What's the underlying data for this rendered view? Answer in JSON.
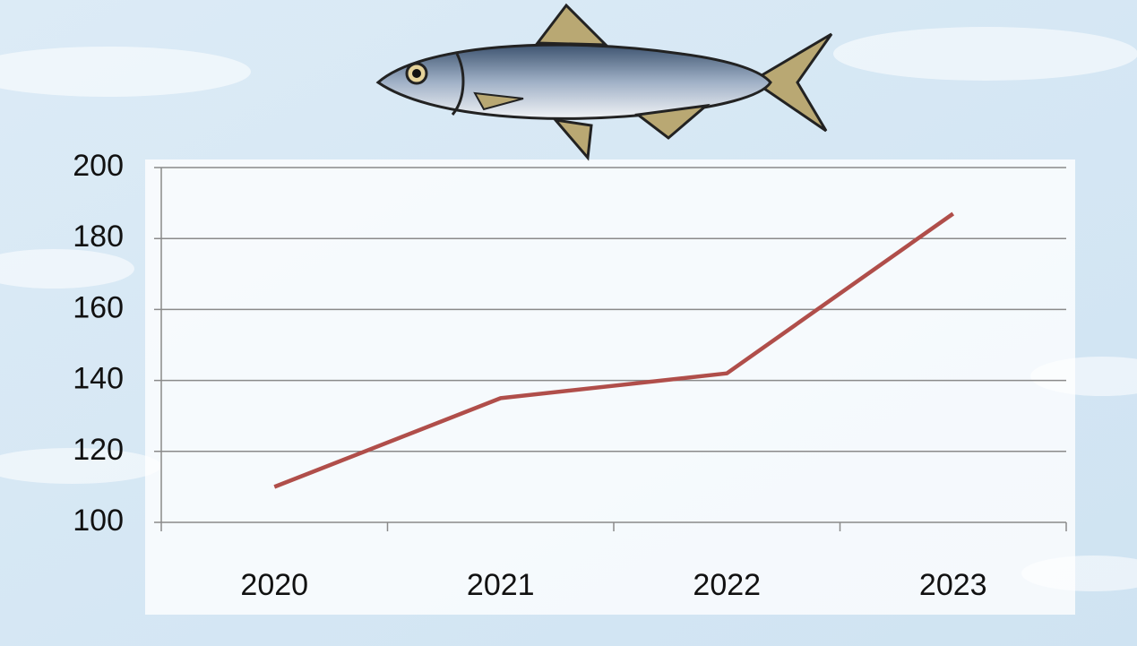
{
  "chart_data": {
    "type": "line",
    "categories": [
      "2020",
      "2021",
      "2022",
      "2023"
    ],
    "series": [
      {
        "color": "#b04e4a",
        "values": [
          110,
          135,
          142,
          187
        ]
      }
    ],
    "ylim": [
      100,
      200
    ],
    "yticks": [
      100,
      120,
      140,
      160,
      180,
      200
    ],
    "grid": true
  }
}
